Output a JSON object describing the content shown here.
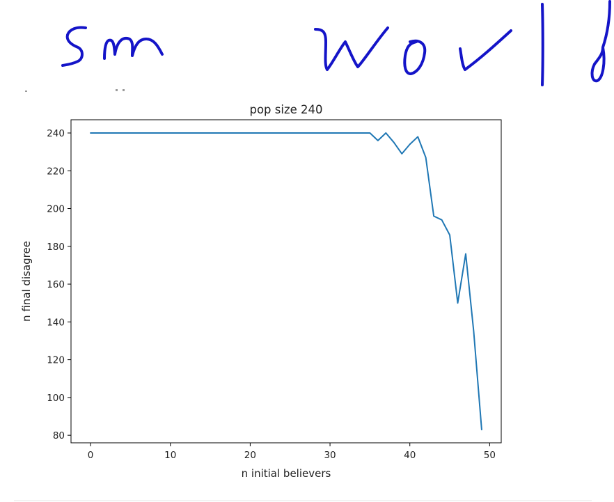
{
  "annotation": {
    "handwritten_text": "sm world",
    "ink_color": "#1414c8"
  },
  "chart_data": {
    "type": "line",
    "title": "pop size 240",
    "xlabel": "n initial believers",
    "ylabel": "n final disagree",
    "xlim": [
      -2.45,
      51.45
    ],
    "ylim": [
      76,
      247
    ],
    "xticks": [
      0,
      10,
      20,
      30,
      40,
      50
    ],
    "yticks": [
      80,
      100,
      120,
      140,
      160,
      180,
      200,
      220,
      240
    ],
    "grid": false,
    "series": [
      {
        "color": "#1f77b4",
        "x": [
          0,
          1,
          2,
          3,
          4,
          5,
          6,
          7,
          8,
          9,
          10,
          11,
          12,
          13,
          14,
          15,
          16,
          17,
          18,
          19,
          20,
          21,
          22,
          23,
          24,
          25,
          26,
          27,
          28,
          29,
          30,
          31,
          32,
          33,
          34,
          35,
          36,
          37,
          38,
          39,
          40,
          41,
          42,
          43,
          44,
          45,
          46,
          47,
          48,
          49
        ],
        "y": [
          240,
          240,
          240,
          240,
          240,
          240,
          240,
          240,
          240,
          240,
          240,
          240,
          240,
          240,
          240,
          240,
          240,
          240,
          240,
          240,
          240,
          240,
          240,
          240,
          240,
          240,
          240,
          240,
          240,
          240,
          240,
          240,
          240,
          240,
          240,
          240,
          236,
          240,
          235,
          229,
          234,
          238,
          227,
          196,
          194,
          186,
          150,
          176,
          135,
          83
        ]
      }
    ]
  }
}
